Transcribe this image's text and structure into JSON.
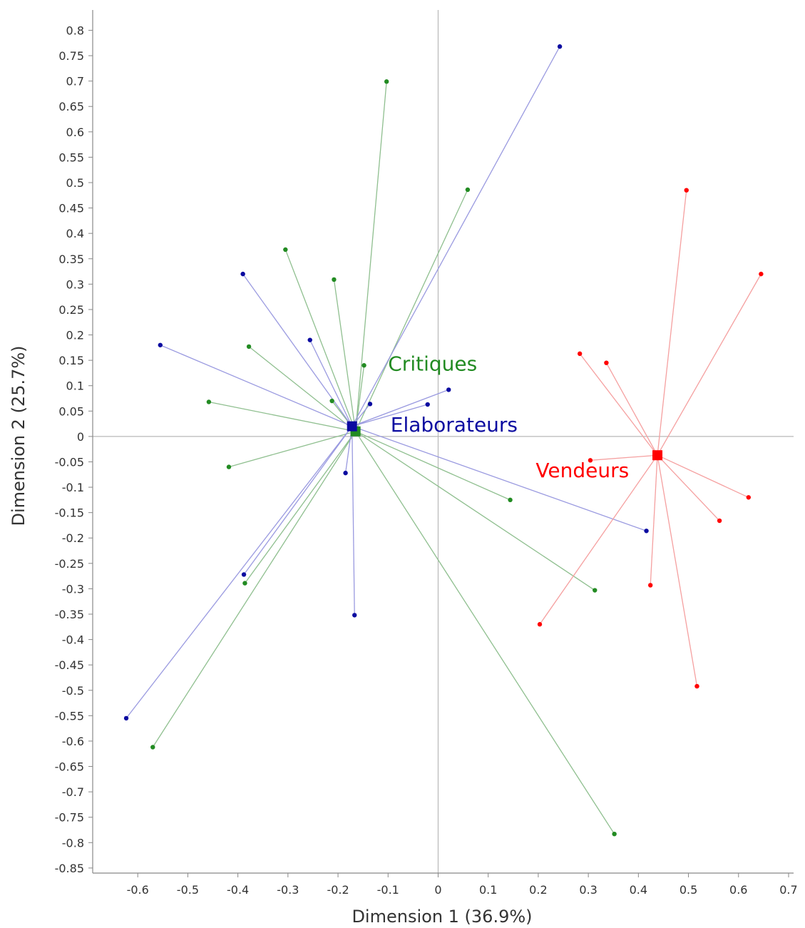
{
  "chart_data": {
    "type": "scatter",
    "xlabel": "Dimension 1 (36.9%)",
    "ylabel": "Dimension 2 (25.7%)",
    "xlim": [
      -0.69,
      0.71
    ],
    "ylim": [
      -0.86,
      0.84
    ],
    "xticks": [
      -0.6,
      -0.5,
      -0.4,
      -0.3,
      -0.2,
      -0.1,
      0,
      0.1,
      0.2,
      0.3,
      0.4,
      0.5,
      0.6,
      0.7
    ],
    "yticks": [
      0.8,
      0.75,
      0.7,
      0.65,
      0.6,
      0.55,
      0.5,
      0.45,
      0.4,
      0.35,
      0.3,
      0.25,
      0.2,
      0.15,
      0.1,
      0.05,
      0,
      -0.05,
      -0.1,
      -0.15,
      -0.2,
      -0.25,
      -0.3,
      -0.35,
      -0.4,
      -0.45,
      -0.5,
      -0.55,
      -0.6,
      -0.65,
      -0.7,
      -0.75,
      -0.8,
      -0.85
    ],
    "reference_lines": {
      "x": 0,
      "y": 0
    },
    "series": [
      {
        "name": "Critiques",
        "color": "#228b22",
        "line_color": "#8fbf8f",
        "centroid": [
          -0.165,
          0.01
        ],
        "label_anchor": [
          -0.1,
          0.13
        ],
        "points": [
          [
            -0.103,
            0.699
          ],
          [
            0.059,
            0.486
          ],
          [
            -0.305,
            0.368
          ],
          [
            -0.208,
            0.309
          ],
          [
            -0.378,
            0.177
          ],
          [
            -0.148,
            0.14
          ],
          [
            -0.458,
            0.068
          ],
          [
            -0.212,
            0.07
          ],
          [
            -0.418,
            -0.06
          ],
          [
            0.144,
            -0.125
          ],
          [
            -0.386,
            -0.289
          ],
          [
            0.313,
            -0.303
          ],
          [
            -0.57,
            -0.612
          ],
          [
            0.352,
            -0.783
          ]
        ]
      },
      {
        "name": "Elaborateurs",
        "color": "#0a0aa0",
        "line_color": "#9a9ae0",
        "centroid": [
          -0.172,
          0.02
        ],
        "label_anchor": [
          -0.095,
          0.01
        ],
        "points": [
          [
            0.243,
            0.768
          ],
          [
            -0.39,
            0.32
          ],
          [
            -0.256,
            0.19
          ],
          [
            -0.555,
            0.18
          ],
          [
            0.021,
            0.092
          ],
          [
            -0.136,
            0.064
          ],
          [
            -0.021,
            0.063
          ],
          [
            -0.185,
            -0.072
          ],
          [
            0.416,
            -0.186
          ],
          [
            -0.388,
            -0.272
          ],
          [
            -0.167,
            -0.352
          ],
          [
            -0.623,
            -0.555
          ]
        ]
      },
      {
        "name": "Vendeurs",
        "color": "#ff0000",
        "line_color": "#f5a0a0",
        "centroid": [
          0.438,
          -0.037
        ],
        "label_anchor": [
          0.195,
          -0.08
        ],
        "points": [
          [
            0.496,
            0.485
          ],
          [
            0.645,
            0.32
          ],
          [
            0.283,
            0.163
          ],
          [
            0.336,
            0.145
          ],
          [
            0.304,
            -0.047
          ],
          [
            0.62,
            -0.12
          ],
          [
            0.562,
            -0.166
          ],
          [
            0.424,
            -0.293
          ],
          [
            0.203,
            -0.37
          ],
          [
            0.517,
            -0.492
          ]
        ]
      }
    ]
  }
}
